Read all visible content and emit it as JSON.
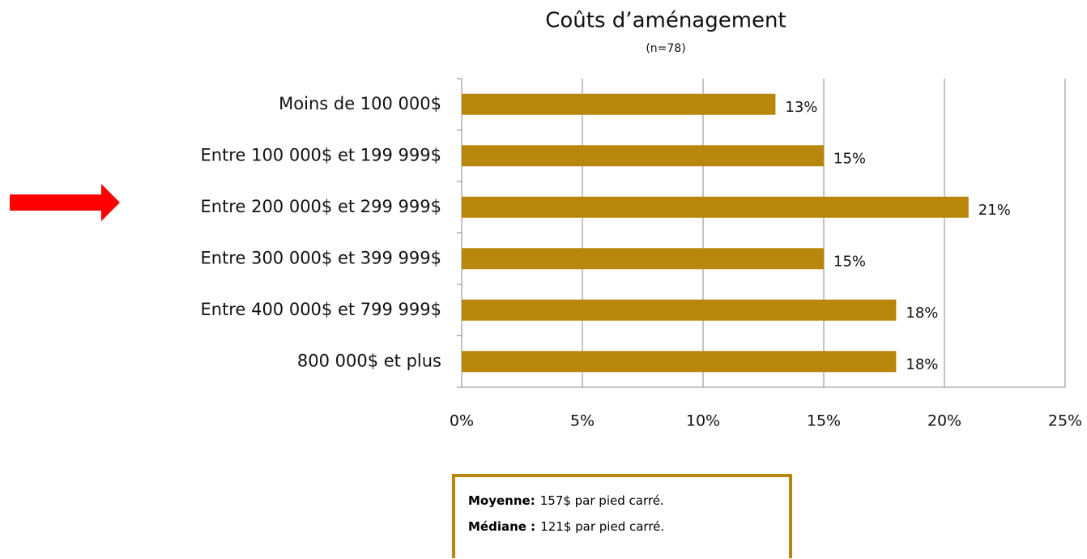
{
  "chart_data": {
    "type": "bar",
    "orientation": "horizontal",
    "title": "Coûts d’aménagement",
    "subtitle": "(n=78)",
    "categories": [
      "Moins de 100 000$",
      "Entre 100 000$ et 199 999$",
      "Entre 200 000$ et 299 999$",
      "Entre 300 000$ et 399 999$",
      "Entre 400 000$ et 799 999$",
      "800 000$ et plus"
    ],
    "values": [
      13,
      15,
      21,
      15,
      18,
      18
    ],
    "value_labels": [
      "13%",
      "15%",
      "21%",
      "15%",
      "18%",
      "18%"
    ],
    "color": "#b8860b",
    "xlim": [
      0,
      25
    ],
    "xticks": [
      {
        "value": 0,
        "label": "0%"
      },
      {
        "value": 5,
        "label": "5%"
      },
      {
        "value": 10,
        "label": "10%"
      },
      {
        "value": 15,
        "label": "15%"
      },
      {
        "value": 20,
        "label": "20%"
      },
      {
        "value": 25,
        "label": "25%"
      }
    ],
    "grid": true,
    "notes": [
      {
        "label": "Moyenne:",
        "text": "157$ par pied carré."
      },
      {
        "label": "Médiane :",
        "text": "121$ par pied carré."
      }
    ]
  }
}
